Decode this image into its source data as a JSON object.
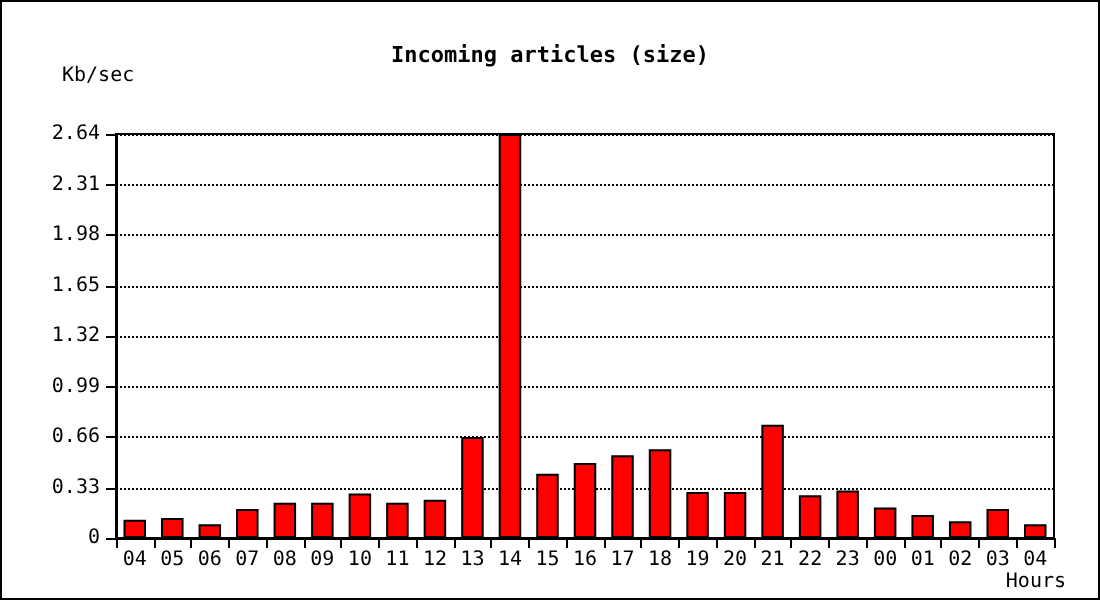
{
  "chart_data": {
    "type": "bar",
    "title": "Incoming articles (size)",
    "ylabel": "Kb/sec",
    "xlabel": "Hours",
    "categories": [
      "04",
      "05",
      "06",
      "07",
      "08",
      "09",
      "10",
      "11",
      "12",
      "13",
      "14",
      "15",
      "16",
      "17",
      "18",
      "19",
      "20",
      "21",
      "22",
      "23",
      "00",
      "01",
      "02",
      "03",
      "04"
    ],
    "series": [
      {
        "color": "#ff0000",
        "values": [
          0.12,
          0.13,
          0.09,
          0.19,
          0.23,
          0.23,
          0.29,
          0.23,
          0.25,
          0.66,
          2.64,
          0.42,
          0.49,
          0.54,
          0.58,
          0.3,
          0.3,
          0.74,
          0.28,
          0.31,
          0.2,
          0.15,
          0.11,
          0.19,
          0.09
        ]
      }
    ],
    "ylim": [
      0,
      2.64
    ],
    "yticks": [
      0,
      0.33,
      0.66,
      0.99,
      1.32,
      1.65,
      1.98,
      2.31,
      2.64
    ],
    "grid": "y"
  }
}
